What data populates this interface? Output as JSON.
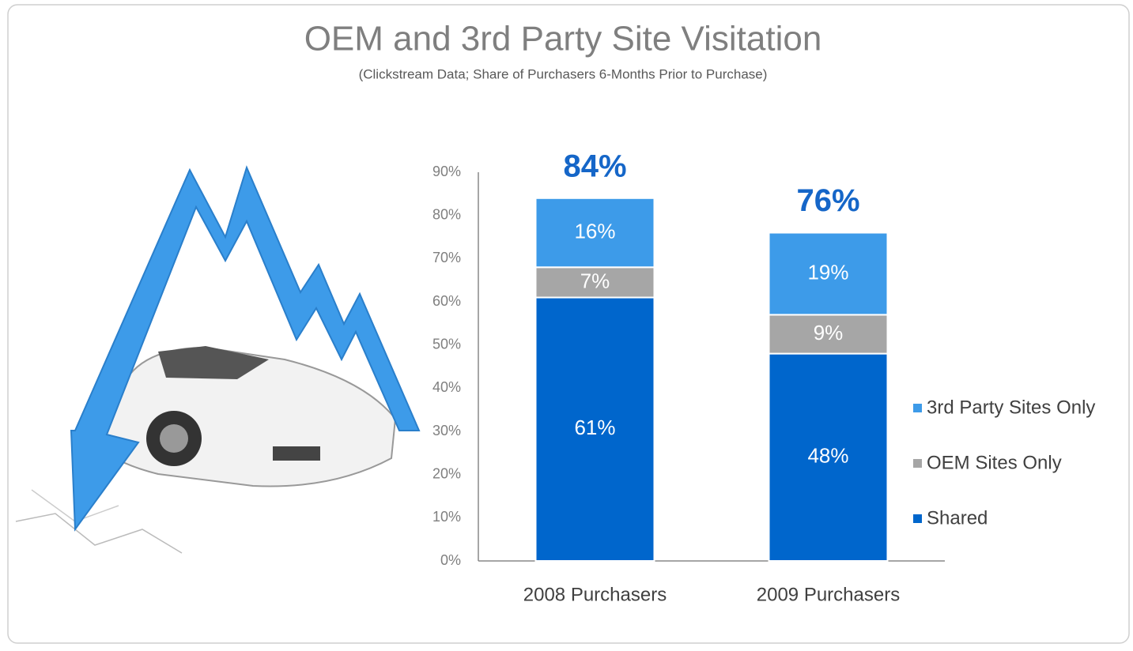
{
  "chart_data": {
    "type": "stacked_bar",
    "title": "OEM and 3rd Party Site Visitation",
    "subtitle": "(Clickstream Data; Share of Purchasers 6-Months Prior to Purchase)",
    "categories": [
      "2008 Purchasers",
      "2009 Purchasers"
    ],
    "series": [
      {
        "name": "Shared",
        "color": "#0066cc",
        "values": [
          61,
          48
        ],
        "value_labels": [
          "61%",
          "48%"
        ]
      },
      {
        "name": "OEM Sites Only",
        "color": "#a6a6a6",
        "values": [
          7,
          9
        ],
        "value_labels": [
          "7%",
          "9%"
        ]
      },
      {
        "name": "3rd Party Sites Only",
        "color": "#3d9be9",
        "values": [
          16,
          19
        ],
        "value_labels": [
          "16%",
          "19%"
        ]
      }
    ],
    "totals": {
      "color": "#1566c8",
      "values": [
        84,
        76
      ],
      "value_labels": [
        "84%",
        "76%"
      ]
    },
    "ylim": [
      0,
      90
    ],
    "yticks": [
      {
        "value": 0,
        "label": "0%"
      },
      {
        "value": 10,
        "label": "10%"
      },
      {
        "value": 20,
        "label": "20%"
      },
      {
        "value": 30,
        "label": "30%"
      },
      {
        "value": 40,
        "label": "40%"
      },
      {
        "value": 50,
        "label": "50%"
      },
      {
        "value": 60,
        "label": "60%"
      },
      {
        "value": 70,
        "label": "70%"
      },
      {
        "value": 80,
        "label": "80%"
      },
      {
        "value": 90,
        "label": "90%"
      }
    ],
    "grid": false,
    "legend": "right"
  }
}
